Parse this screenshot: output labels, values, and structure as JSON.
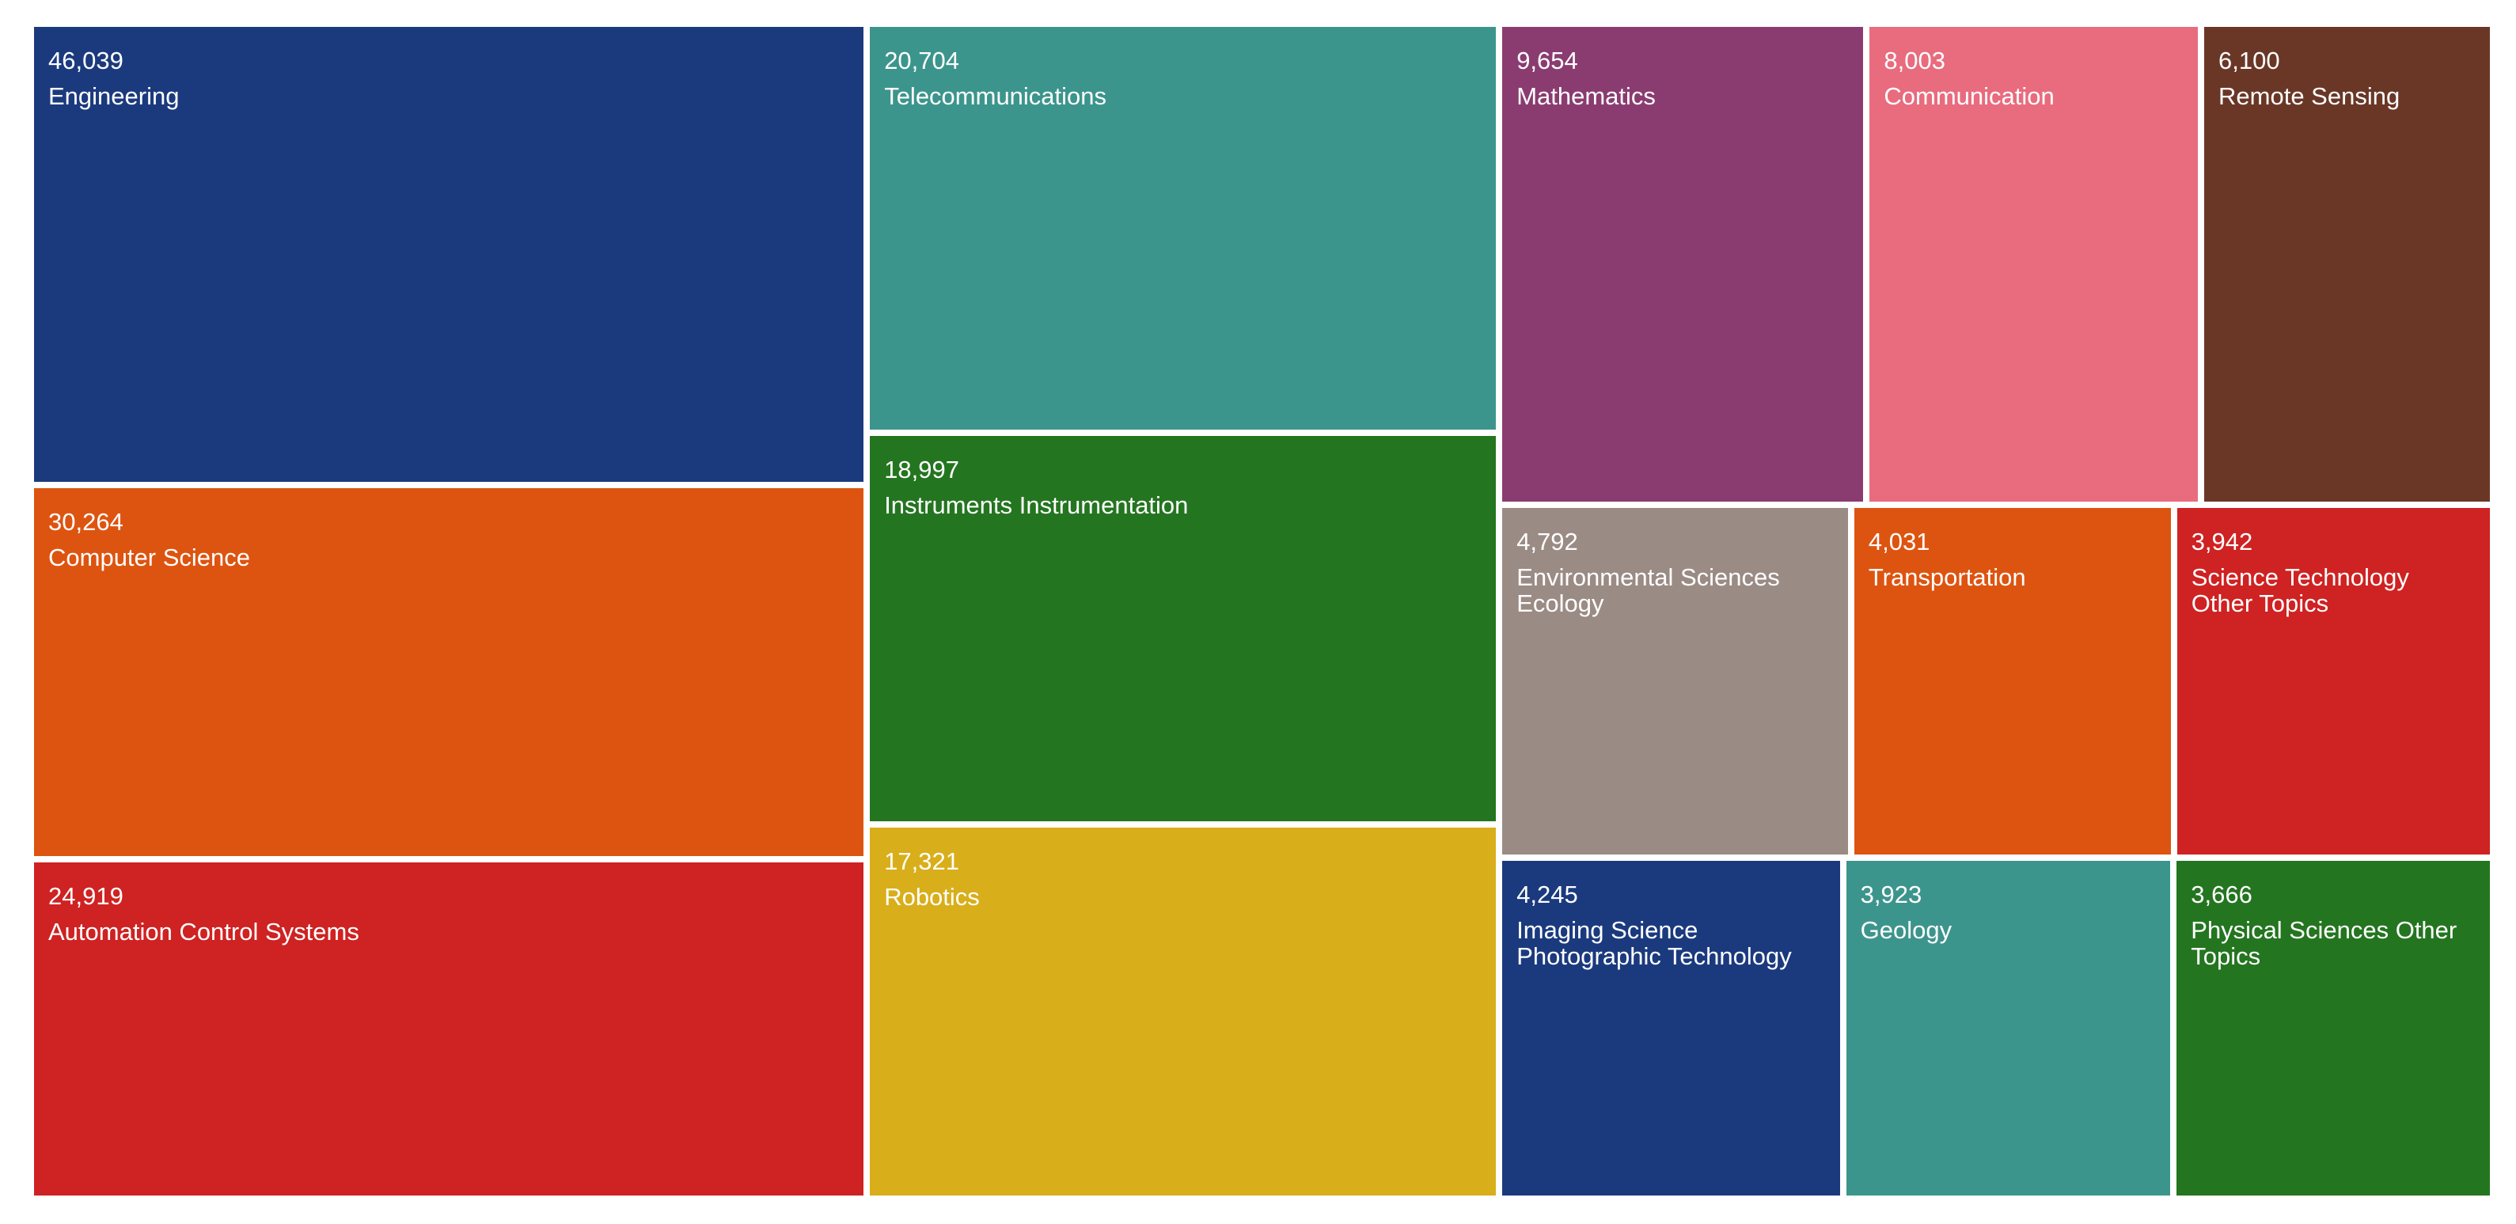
{
  "chart_data": {
    "type": "treemap",
    "categories": [
      "Engineering",
      "Computer Science",
      "Automation Control Systems",
      "Telecommunications",
      "Instruments Instrumentation",
      "Robotics",
      "Mathematics",
      "Communication",
      "Remote Sensing",
      "Environmental Sciences Ecology",
      "Transportation",
      "Science Technology Other Topics",
      "Imaging Science Photographic Technology",
      "Geology",
      "Physical Sciences Other Topics"
    ],
    "values": [
      46039,
      30264,
      24919,
      20704,
      18997,
      17321,
      9654,
      8003,
      6100,
      4792,
      4031,
      3942,
      4245,
      3923,
      3666
    ],
    "value_labels": [
      "46,039",
      "30,264",
      "24,919",
      "20,704",
      "18,997",
      "17,321",
      "9,654",
      "8,003",
      "6,100",
      "4,792",
      "4,031",
      "3,942",
      "4,245",
      "3,923",
      "3,666"
    ],
    "colors": [
      "#1b3a7e",
      "#dd5410",
      "#cf2222",
      "#3c958c",
      "#247520",
      "#d9ae1b",
      "#8a3c70",
      "#e86c7e",
      "#6a3727",
      "#9b8b85",
      "#dd5410",
      "#cf2222",
      "#1b3a7e",
      "#3c958c",
      "#247520"
    ]
  }
}
